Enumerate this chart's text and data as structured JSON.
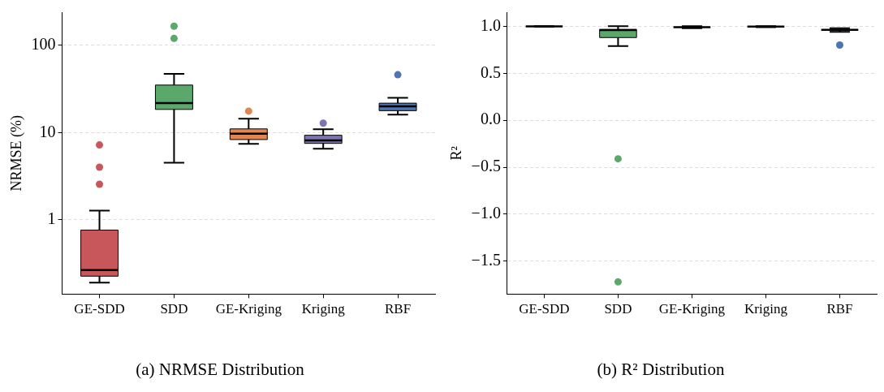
{
  "chart_data": [
    {
      "type": "box",
      "title": "(a) NRMSE Distribution",
      "ylabel": "NRMSE (%)",
      "categories": [
        "GE-SDD",
        "SDD",
        "GE-Kriging",
        "Kriging",
        "RBF"
      ],
      "colors": [
        "#c8575b",
        "#5ba86b",
        "#df8652",
        "#8073b3",
        "#4e74b2"
      ],
      "boxes": [
        {
          "low": 0.19,
          "q1": 0.225,
          "median": 0.265,
          "q3": 0.76,
          "high": 1.27,
          "outliers": [
            2.55,
            4.0,
            7.2
          ]
        },
        {
          "low": 4.5,
          "q1": 18.4,
          "median": 21.7,
          "q3": 35,
          "high": 47,
          "outliers": [
            120,
            166
          ]
        },
        {
          "low": 7.4,
          "q1": 8.3,
          "median": 9.7,
          "q3": 11,
          "high": 14.4,
          "outliers": [
            17.6
          ]
        },
        {
          "low": 6.5,
          "q1": 7.5,
          "median": 8.1,
          "q3": 9.3,
          "high": 10.9,
          "outliers": [
            12.8
          ]
        },
        {
          "low": 16,
          "q1": 17.8,
          "median": 20,
          "q3": 21.7,
          "high": 25,
          "outliers": [
            46
          ]
        }
      ],
      "log": "y",
      "ylim": [
        0.14,
        240
      ],
      "yticks": [
        1,
        10,
        100
      ],
      "grid": "y",
      "legend": false
    },
    {
      "type": "box",
      "title": "(b) R² Distribution",
      "ylabel": "R²",
      "categories": [
        "GE-SDD",
        "SDD",
        "GE-Kriging",
        "Kriging",
        "RBF"
      ],
      "colors": [
        "#c8575b",
        "#5ba86b",
        "#df8652",
        "#8073b3",
        "#4e74b2"
      ],
      "boxes": [
        {
          "low": 0.995,
          "q1": 0.997,
          "median": 0.998,
          "q3": 0.999,
          "high": 1.0
        },
        {
          "low": 0.79,
          "q1": 0.88,
          "median": 0.96,
          "q3": 0.966,
          "high": 1.0,
          "outliers": [
            -0.41,
            -1.72
          ]
        },
        {
          "low": 0.98,
          "q1": 0.985,
          "median": 0.99,
          "q3": 0.993,
          "high": 1.0
        },
        {
          "low": 0.99,
          "q1": 0.995,
          "median": 0.997,
          "q3": 0.999,
          "high": 1.0
        },
        {
          "low": 0.94,
          "q1": 0.955,
          "median": 0.963,
          "q3": 0.968,
          "high": 0.98,
          "outliers": [
            0.8
          ]
        }
      ],
      "ylim": [
        -1.85,
        1.15
      ],
      "yticks": [
        {
          "value": -1.5,
          "label": "−1.5"
        },
        {
          "value": -1,
          "label": "−1.0"
        },
        {
          "value": -0.5,
          "label": "−0.5"
        },
        {
          "value": 0,
          "label": "0.0"
        },
        {
          "value": 0.5,
          "label": "0.5"
        },
        {
          "value": 1,
          "label": "1.0"
        }
      ],
      "grid": "y",
      "legend": false
    }
  ]
}
